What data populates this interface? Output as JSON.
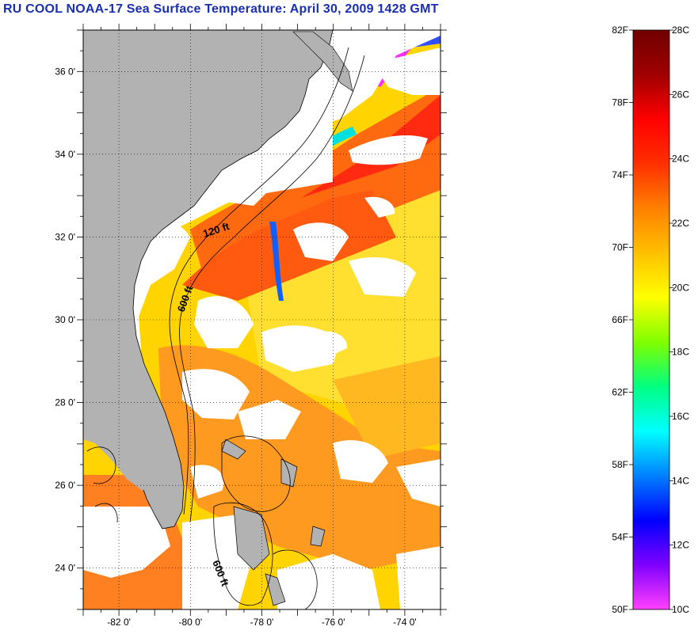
{
  "title": "RU COOL  NOAA-17  Sea Surface Temperature:  April 30, 2009 1428 GMT",
  "map": {
    "lon_range": [
      -83,
      -73
    ],
    "lat_range": [
      23,
      37
    ],
    "lon_ticks": [
      {
        "value": -82,
        "label": "-82 0'"
      },
      {
        "value": -80,
        "label": "-80 0'"
      },
      {
        "value": -78,
        "label": "-78 0'"
      },
      {
        "value": -76,
        "label": "-76 0'"
      },
      {
        "value": -74,
        "label": "-74 0'"
      }
    ],
    "lat_ticks": [
      {
        "value": 24,
        "label": "24 0'"
      },
      {
        "value": 26,
        "label": "26 0'"
      },
      {
        "value": 28,
        "label": "28 0'"
      },
      {
        "value": 30,
        "label": "30 0'"
      },
      {
        "value": 32,
        "label": "32 0'"
      },
      {
        "value": 34,
        "label": "34 0'"
      },
      {
        "value": 36,
        "label": "36 0'"
      }
    ],
    "grid": "dotted",
    "land_color": "#b2b2b2",
    "cloud_color": "#ffffff",
    "depth_labels": [
      {
        "id": "d120",
        "text": "120 ft"
      },
      {
        "id": "d600a",
        "text": "600 ft"
      },
      {
        "id": "d600b",
        "text": "600 ft"
      }
    ]
  },
  "colorbar": {
    "fahrenheit": [
      "82F",
      "78F",
      "74F",
      "70F",
      "66F",
      "62F",
      "58F",
      "54F",
      "50F"
    ],
    "celsius": [
      "28C",
      "26C",
      "24C",
      "22C",
      "20C",
      "18C",
      "16C",
      "14C",
      "12C",
      "10C"
    ],
    "range_c": [
      10,
      28
    ],
    "colors": [
      "#ff40ff",
      "#8000ff",
      "#0000ff",
      "#0080ff",
      "#00ffff",
      "#00ff80",
      "#80ff00",
      "#ffff00",
      "#ffc000",
      "#ff8000",
      "#ff3000",
      "#ff0000",
      "#a00000",
      "#700000"
    ]
  }
}
